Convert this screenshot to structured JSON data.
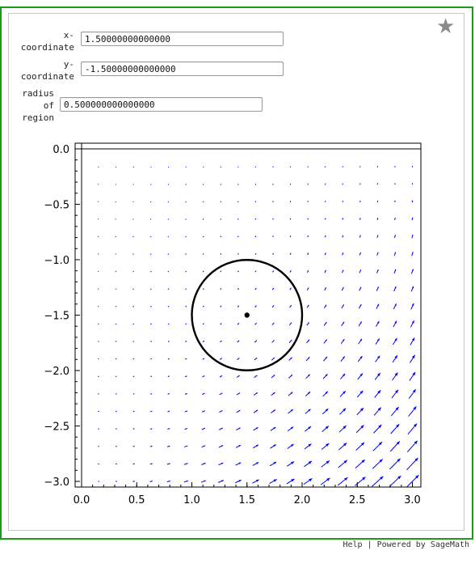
{
  "controls": {
    "x": {
      "label": "x-\ncoordinate",
      "value": "1.50000000000000"
    },
    "y": {
      "label": "y-\ncoordinate",
      "value": "-1.50000000000000"
    },
    "r": {
      "label": "radius\nof\nregion",
      "value": "0.500000000000000"
    }
  },
  "footer": {
    "help": "Help",
    "separator": " | ",
    "powered": "Powered by SageMath"
  },
  "icons": {
    "favorite": "star-icon"
  },
  "colors": {
    "frame": "#1e9a1e",
    "vectors": "#0000ff",
    "circle": "#000000"
  },
  "chart_data": {
    "type": "vector-field",
    "title": "",
    "xlabel": "",
    "ylabel": "",
    "xlim": [
      0.0,
      3.0
    ],
    "ylim": [
      -3.0,
      0.0
    ],
    "xticks": [
      "0.0",
      "0.5",
      "1.0",
      "1.5",
      "2.0",
      "2.5",
      "3.0"
    ],
    "yticks": [
      "0.0",
      "-0.5",
      "-1.0",
      "-1.5",
      "-2.0",
      "-2.5",
      "-3.0"
    ],
    "grid_points": 20,
    "field": {
      "u": "x * y^2",
      "v": "-y * x^2"
    },
    "circle": {
      "cx": 1.5,
      "cy": -1.5,
      "r": 0.5
    },
    "center_point": {
      "x": 1.5,
      "y": -1.5
    }
  }
}
